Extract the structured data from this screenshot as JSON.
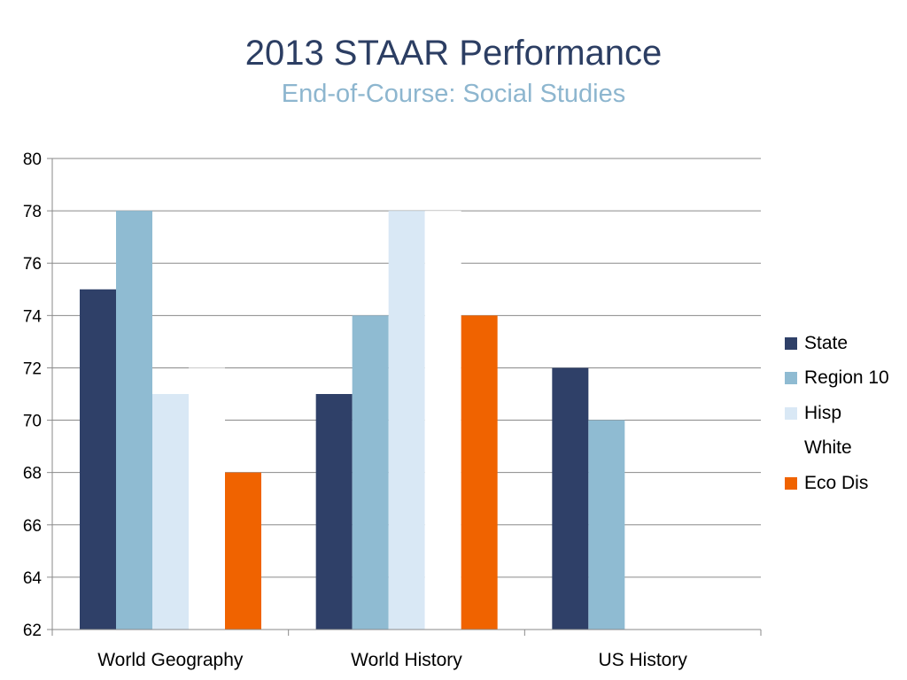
{
  "chart_data": {
    "type": "bar",
    "title": "2013 STAAR Performance",
    "subtitle": "End-of-Course: Social Studies",
    "categories": [
      "World Geography",
      "World History",
      "US History"
    ],
    "series": [
      {
        "name": "State",
        "color": "#2f4068",
        "values": [
          75,
          71,
          72
        ]
      },
      {
        "name": "Region 10",
        "color": "#8fbbd2",
        "values": [
          78,
          74,
          70
        ]
      },
      {
        "name": "Hisp",
        "color": "#d9e8f5",
        "values": [
          71,
          78,
          null
        ]
      },
      {
        "name": "White",
        "color": "#ffffff",
        "values": [
          72,
          78,
          null
        ]
      },
      {
        "name": "Eco Dis",
        "color": "#f06300",
        "values": [
          68,
          74,
          null
        ]
      }
    ],
    "ylim": [
      62,
      80
    ],
    "yticks": [
      62,
      64,
      66,
      68,
      70,
      72,
      74,
      76,
      78,
      80
    ],
    "grid": true,
    "legend": "right"
  }
}
